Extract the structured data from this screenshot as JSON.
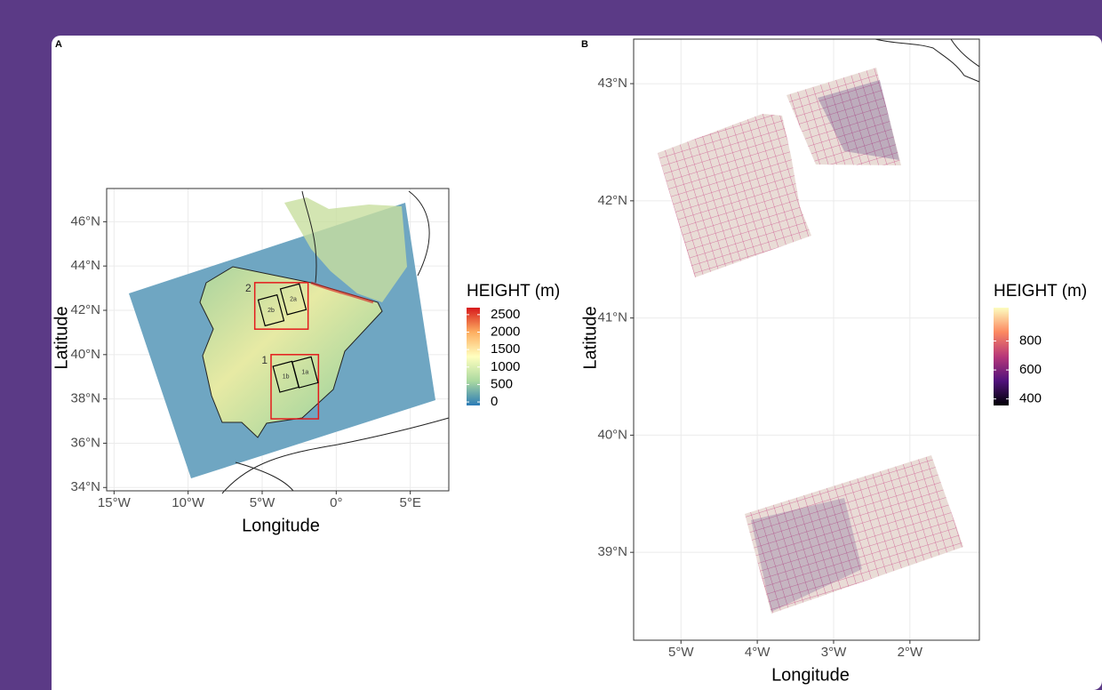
{
  "chart_data": [
    {
      "type": "map",
      "panel": "A",
      "xlabel": "Longitude",
      "ylabel": "Latitude",
      "xlim": [
        -15.5,
        7.6
      ],
      "ylim": [
        33.85,
        47.5
      ],
      "xticks": [
        {
          "value": -15,
          "label": "15°W"
        },
        {
          "value": -10,
          "label": "10°W"
        },
        {
          "value": -5,
          "label": "5°W"
        },
        {
          "value": 0,
          "label": "0°"
        },
        {
          "value": 5,
          "label": "5°E"
        }
      ],
      "yticks": [
        {
          "value": 34,
          "label": "34°N"
        },
        {
          "value": 36,
          "label": "36°N"
        },
        {
          "value": 38,
          "label": "38°N"
        },
        {
          "value": 40,
          "label": "40°N"
        },
        {
          "value": 42,
          "label": "42°N"
        },
        {
          "value": 44,
          "label": "44°N"
        },
        {
          "value": 46,
          "label": "46°N"
        }
      ],
      "grid": true,
      "legend": {
        "title": "HEIGHT (m)",
        "range": [
          -100,
          2700
        ],
        "ticks": [
          0,
          500,
          1000,
          1500,
          2000,
          2500
        ],
        "colors": [
          "#2c7bb6",
          "#abd9a0",
          "#ffffbf",
          "#fdae61",
          "#d7191c"
        ]
      },
      "boxes": [
        {
          "label": "1",
          "lon": [
            -4.4,
            -1.2
          ],
          "lat": [
            37.1,
            40.0
          ],
          "color": "#e41a1c"
        },
        {
          "label": "2",
          "lon": [
            -5.5,
            -1.9
          ],
          "lat": [
            41.15,
            43.25
          ],
          "color": "#e41a1c"
        }
      ],
      "subboxes": [
        {
          "label": "1a",
          "lon": -2.1,
          "lat": 39.2
        },
        {
          "label": "1b",
          "lon": -3.4,
          "lat": 39.0
        },
        {
          "label": "2a",
          "lon": -2.9,
          "lat": 42.5
        },
        {
          "label": "2b",
          "lon": -4.4,
          "lat": 42.0
        }
      ]
    },
    {
      "type": "map",
      "panel": "B",
      "xlabel": "Longitude",
      "ylabel": "Latitude",
      "xlim": [
        -5.62,
        -1.09
      ],
      "ylim": [
        38.25,
        43.38
      ],
      "xticks": [
        {
          "value": -5,
          "label": "5°W"
        },
        {
          "value": -4,
          "label": "4°W"
        },
        {
          "value": -3,
          "label": "3°W"
        },
        {
          "value": -2,
          "label": "2°W"
        }
      ],
      "yticks": [
        {
          "value": 39,
          "label": "39°N"
        },
        {
          "value": 40,
          "label": "40°N"
        },
        {
          "value": 41,
          "label": "41°N"
        },
        {
          "value": 42,
          "label": "42°N"
        },
        {
          "value": 43,
          "label": "43°N"
        }
      ],
      "grid": true,
      "legend": {
        "title": "HEIGHT (m)",
        "range": [
          355,
          1030
        ],
        "ticks": [
          400,
          600,
          800
        ],
        "colors": [
          "#000004",
          "#51127c",
          "#b73779",
          "#fc8961",
          "#fcfdbf"
        ]
      }
    }
  ]
}
